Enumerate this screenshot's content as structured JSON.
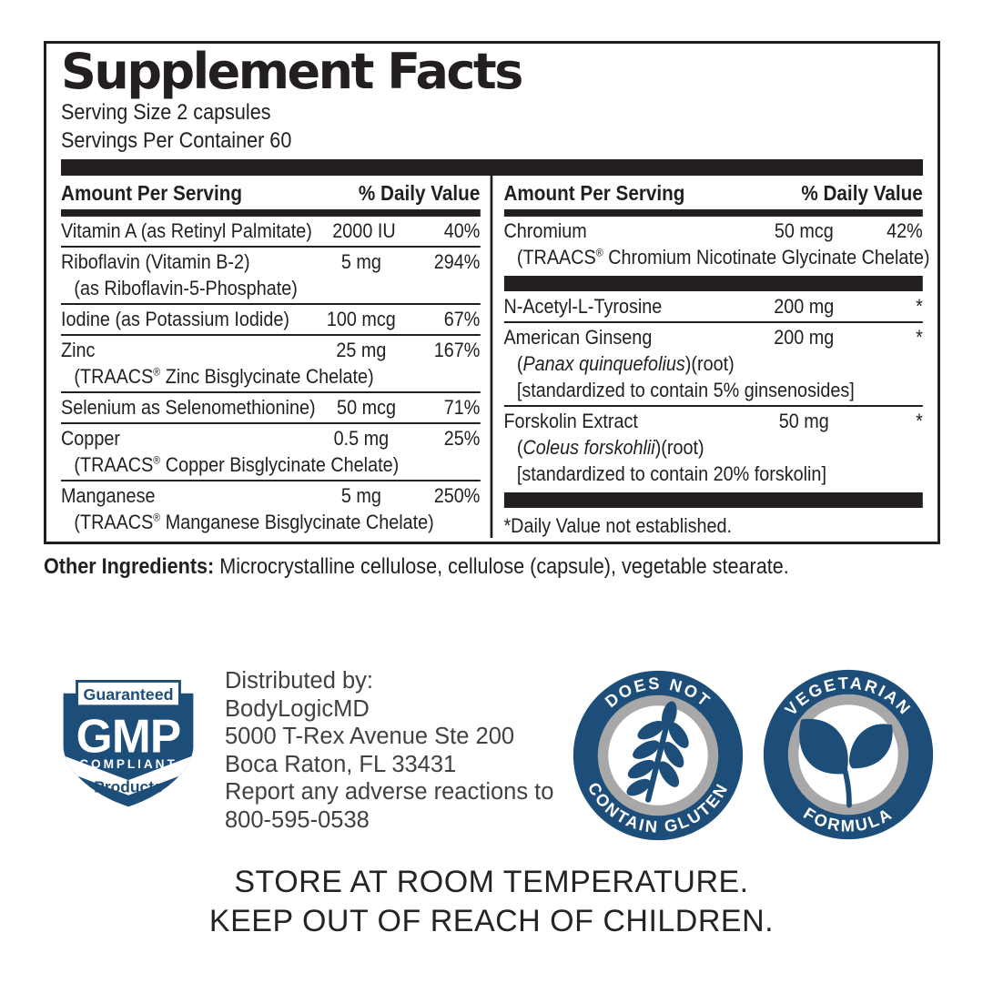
{
  "colors": {
    "ink": "#231f20",
    "badge_blue": "#1d4e79",
    "badge_gray": "#a8a8a8"
  },
  "panel": {
    "title": "Supplement Facts",
    "serving_size": "Serving Size 2 capsules",
    "servings_per_container": "Servings Per Container 60",
    "columns": [
      {
        "header": {
          "amount": "Amount Per Serving",
          "daily_value": "% Daily Value"
        },
        "rows": [
          {
            "name": "Vitamin A (as Retinyl Palmitate)",
            "amount": "2000 IU",
            "dv": "40%",
            "rule": true
          },
          {
            "name": "Riboflavin (Vitamin B-2)",
            "amount": "5 mg",
            "dv": "294%",
            "subs": [
              [
                {
                  "t": "(as Riboflavin-5-Phosphate)"
                }
              ]
            ],
            "rule": true
          },
          {
            "name": "Iodine (as Potassium Iodide)",
            "amount": "100 mcg",
            "dv": "67%",
            "rule": true
          },
          {
            "name": "Zinc",
            "amount": "25 mg",
            "dv": "167%",
            "subs": [
              [
                {
                  "t": "(TRAACS"
                },
                {
                  "t": "®",
                  "sup": true
                },
                {
                  "t": " Zinc Bisglycinate Chelate)"
                }
              ]
            ],
            "rule": true
          },
          {
            "name": "Selenium as Selenomethionine)",
            "amount": "50 mcg",
            "dv": "71%",
            "rule": true
          },
          {
            "name": "Copper",
            "amount": "0.5 mg",
            "dv": "25%",
            "subs": [
              [
                {
                  "t": "(TRAACS"
                },
                {
                  "t": "®",
                  "sup": true
                },
                {
                  "t": " Copper Bisglycinate Chelate)"
                }
              ]
            ],
            "rule": true
          },
          {
            "name": "Manganese",
            "amount": "5 mg",
            "dv": "250%",
            "subs": [
              [
                {
                  "t": "(TRAACS"
                },
                {
                  "t": "®",
                  "sup": true
                },
                {
                  "t": " Manganese Bisglycinate Chelate)"
                }
              ]
            ],
            "rule": false
          }
        ]
      },
      {
        "header": {
          "amount": "Amount Per Serving",
          "daily_value": "% Daily Value"
        },
        "rows": [
          {
            "name": "Chromium",
            "amount": "50 mcg",
            "dv": "42%",
            "subs": [
              [
                {
                  "t": "(TRAACS"
                },
                {
                  "t": "®",
                  "sup": true
                },
                {
                  "t": " Chromium Nicotinate Glycinate Chelate)"
                }
              ]
            ],
            "rule": false,
            "bar_after": true
          },
          {
            "name": "N-Acetyl-L-Tyrosine",
            "amount": "200 mg",
            "dv": "*",
            "rule": true
          },
          {
            "name": "American Ginseng",
            "amount": "200 mg",
            "dv": "*",
            "subs": [
              [
                {
                  "t": "("
                },
                {
                  "t": "Panax quinquefolius",
                  "i": true
                },
                {
                  "t": ")(root)"
                }
              ],
              [
                {
                  "t": "[standardized to contain 5% ginsenosides]"
                }
              ]
            ],
            "rule": true
          },
          {
            "name": "Forskolin Extract",
            "amount": "50 mg",
            "dv": "*",
            "subs": [
              [
                {
                  "t": "("
                },
                {
                  "t": "Coleus forskohlii",
                  "i": true
                },
                {
                  "t": ")(root)"
                }
              ],
              [
                {
                  "t": "[standardized to contain 20% forskolin]"
                }
              ]
            ],
            "rule": false,
            "bar_after": true
          }
        ],
        "footnote": "*Daily Value not established."
      }
    ]
  },
  "other_ingredients": {
    "label": "Other Ingredients:",
    "text": " Microcrystalline cellulose, cellulose (capsule), vegetable stearate."
  },
  "distributor": {
    "lines": [
      "Distributed by:",
      "BodyLogicMD",
      "5000 T-Rex Avenue Ste 200",
      "Boca Raton, FL 33431",
      "Report any adverse reactions to",
      "800-595-0538"
    ]
  },
  "badges": {
    "gmp": {
      "top": "Guaranteed",
      "acronym": "GMP",
      "middle": "COMPLIANT",
      "bottom": "Products"
    },
    "gluten": {
      "arc_top": "DOES NOT",
      "arc_bottom": "CONTAIN GLUTEN",
      "icon": "wheat-icon"
    },
    "vegetarian": {
      "arc_top": "VEGETARIAN",
      "arc_bottom": "FORMULA",
      "icon": "sprout-icon"
    }
  },
  "storage": {
    "line1": "STORE AT ROOM TEMPERATURE.",
    "line2": "KEEP OUT OF REACH OF CHILDREN."
  }
}
